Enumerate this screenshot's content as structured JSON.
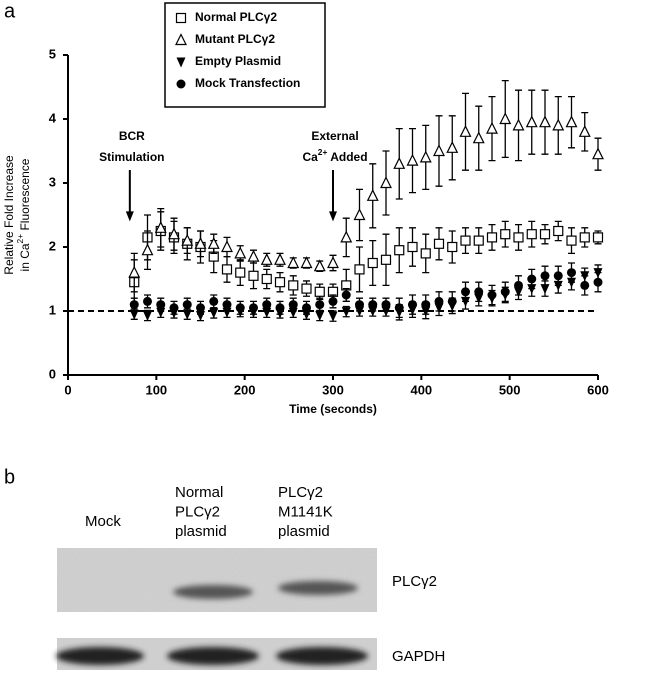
{
  "chart_data": {
    "type": "scatter",
    "panel_label": "a",
    "x_label": "Time (seconds)",
    "y_label_lines": [
      [
        {
          "t": "Relative Fold Increase"
        }
      ],
      [
        {
          "t": "in Ca"
        },
        {
          "t": "2+",
          "sup": true
        },
        {
          "t": " Fluorescence"
        }
      ]
    ],
    "xlim": [
      0,
      600
    ],
    "xticks": [
      0,
      100,
      200,
      300,
      400,
      500,
      600
    ],
    "ylim": [
      0,
      5
    ],
    "yticks": [
      0,
      1,
      2,
      3,
      4,
      5
    ],
    "reference_line": 1,
    "legend": "top-left",
    "annotations": [
      {
        "x": 70,
        "y": 2.4,
        "lines": [
          [
            {
              "t": "BCR"
            }
          ],
          [
            {
              "t": "Stimulation"
            }
          ]
        ]
      },
      {
        "x": 300,
        "y": 2.4,
        "lines": [
          [
            {
              "t": "External"
            }
          ],
          [
            {
              "t": "Ca"
            },
            {
              "t": "2+",
              "sup": true
            },
            {
              "t": " Added"
            }
          ]
        ]
      }
    ],
    "x": [
      75,
      90,
      105,
      120,
      135,
      150,
      165,
      180,
      195,
      210,
      225,
      240,
      255,
      270,
      285,
      300,
      315,
      330,
      345,
      360,
      375,
      390,
      405,
      420,
      435,
      450,
      465,
      480,
      495,
      510,
      525,
      540,
      555,
      570,
      585,
      600
    ],
    "series": [
      {
        "name": "Normal PLCγ2",
        "marker": "square-open",
        "color": "#000000",
        "values": [
          1.45,
          2.15,
          2.25,
          2.15,
          2.05,
          2.0,
          1.85,
          1.65,
          1.6,
          1.55,
          1.5,
          1.45,
          1.4,
          1.35,
          1.3,
          1.3,
          1.4,
          1.65,
          1.75,
          1.8,
          1.95,
          2.0,
          1.9,
          2.05,
          2.0,
          2.1,
          2.1,
          2.15,
          2.2,
          2.15,
          2.2,
          2.2,
          2.25,
          2.1,
          2.15,
          2.15
        ],
        "errors": [
          0.35,
          0.35,
          0.3,
          0.25,
          0.25,
          0.25,
          0.25,
          0.2,
          0.2,
          0.2,
          0.15,
          0.15,
          0.15,
          0.12,
          0.12,
          0.12,
          0.25,
          0.35,
          0.35,
          0.4,
          0.35,
          0.3,
          0.3,
          0.25,
          0.25,
          0.2,
          0.2,
          0.2,
          0.2,
          0.2,
          0.2,
          0.15,
          0.15,
          0.2,
          0.15,
          0.1
        ]
      },
      {
        "name": "Mutant PLCγ2",
        "marker": "triangle-open",
        "color": "#000000",
        "values": [
          1.6,
          1.95,
          2.3,
          2.2,
          2.1,
          2.05,
          2.05,
          2.0,
          1.9,
          1.85,
          1.8,
          1.8,
          1.75,
          1.75,
          1.7,
          1.75,
          2.15,
          2.5,
          2.8,
          3.0,
          3.3,
          3.35,
          3.4,
          3.5,
          3.55,
          3.8,
          3.7,
          3.85,
          4.0,
          3.9,
          3.95,
          3.95,
          3.9,
          3.95,
          3.8,
          3.45
        ],
        "errors": [
          0.3,
          0.3,
          0.3,
          0.25,
          0.2,
          0.2,
          0.15,
          0.15,
          0.12,
          0.1,
          0.1,
          0.1,
          0.08,
          0.08,
          0.08,
          0.12,
          0.3,
          0.4,
          0.5,
          0.5,
          0.55,
          0.5,
          0.5,
          0.55,
          0.5,
          0.6,
          0.5,
          0.5,
          0.6,
          0.55,
          0.5,
          0.5,
          0.45,
          0.4,
          0.3,
          0.25
        ]
      },
      {
        "name": "Empty Plasmid",
        "marker": "triangle-down",
        "color": "#000000",
        "values": [
          0.95,
          0.93,
          0.98,
          0.97,
          0.95,
          0.93,
          0.97,
          0.98,
          0.99,
          0.98,
          0.98,
          0.97,
          0.98,
          0.95,
          0.93,
          0.92,
          0.99,
          1.0,
          1.0,
          1.0,
          0.98,
          1.02,
          1.0,
          1.05,
          1.08,
          1.15,
          1.2,
          1.2,
          1.25,
          1.3,
          1.35,
          1.35,
          1.4,
          1.45,
          1.55,
          1.6
        ],
        "errors": [
          0.08,
          0.08,
          0.08,
          0.08,
          0.08,
          0.08,
          0.08,
          0.08,
          0.08,
          0.08,
          0.08,
          0.08,
          0.08,
          0.08,
          0.08,
          0.08,
          0.08,
          0.08,
          0.08,
          0.08,
          0.12,
          0.12,
          0.12,
          0.12,
          0.12,
          0.12,
          0.12,
          0.12,
          0.12,
          0.12,
          0.12,
          0.12,
          0.12,
          0.12,
          0.12,
          0.12
        ]
      },
      {
        "name": "Mock Transfection",
        "marker": "circle",
        "color": "#000000",
        "values": [
          1.1,
          1.15,
          1.1,
          1.05,
          1.1,
          1.05,
          1.15,
          1.1,
          1.05,
          1.05,
          1.1,
          1.05,
          1.1,
          1.05,
          1.1,
          1.15,
          1.25,
          1.1,
          1.1,
          1.1,
          1.05,
          1.1,
          1.1,
          1.15,
          1.15,
          1.3,
          1.3,
          1.25,
          1.3,
          1.4,
          1.5,
          1.55,
          1.55,
          1.6,
          1.4,
          1.45
        ],
        "errors": [
          0.1,
          0.1,
          0.1,
          0.1,
          0.1,
          0.1,
          0.1,
          0.1,
          0.1,
          0.1,
          0.1,
          0.1,
          0.1,
          0.1,
          0.1,
          0.1,
          0.1,
          0.1,
          0.1,
          0.1,
          0.15,
          0.15,
          0.15,
          0.15,
          0.15,
          0.15,
          0.15,
          0.15,
          0.15,
          0.15,
          0.15,
          0.15,
          0.15,
          0.15,
          0.15,
          0.15
        ]
      }
    ]
  },
  "blot": {
    "panel_label": "b",
    "lanes": [
      [
        "Mock"
      ],
      [
        "Normal",
        "PLCγ2",
        "plasmid"
      ],
      [
        "PLCγ2",
        "M1141K",
        "plasmid"
      ]
    ],
    "rows": [
      "PLCγ2",
      "GAPDH"
    ]
  }
}
